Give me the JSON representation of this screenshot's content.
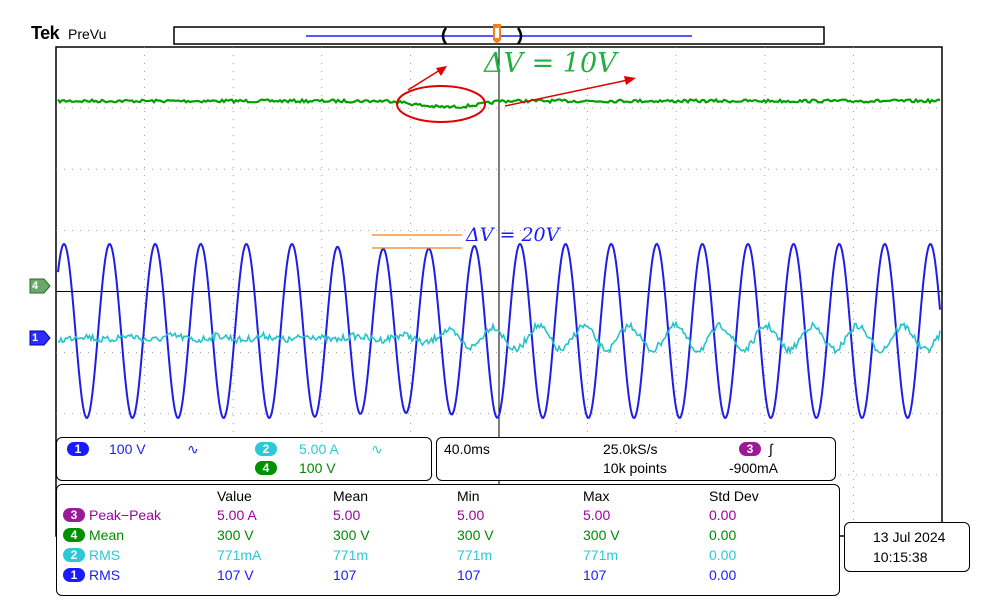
{
  "header": {
    "brand": "Tek",
    "mode": "PreVu"
  },
  "annotations": {
    "delta_top": "ΔV = 10V",
    "delta_mid": "ΔV = 20V"
  },
  "ground_markers": {
    "ch4": "4",
    "ch1": "1"
  },
  "channels_panel": {
    "ch1": {
      "num": "1",
      "scale": "100 V",
      "coupling": "∿"
    },
    "ch2": {
      "num": "2",
      "scale": "5.00 A",
      "coupling": "∿"
    },
    "ch4": {
      "num": "4",
      "scale": "100 V"
    }
  },
  "timebase": {
    "time_div": "40.0ms",
    "sample_rate": "25.0kS/s",
    "record_length": "10k points",
    "trigger_channel": "3",
    "trigger_slope": "∫",
    "trigger_level": "-900mA"
  },
  "measurements": {
    "headers": [
      "Value",
      "Mean",
      "Min",
      "Max",
      "Std Dev"
    ],
    "rows": [
      {
        "ch": "3",
        "name": "Peak−Peak",
        "color": "#a000a0",
        "bg": "#9a1a9a",
        "values": [
          "5.00 A",
          "5.00",
          "5.00",
          "5.00",
          "0.00"
        ]
      },
      {
        "ch": "4",
        "name": "Mean",
        "color": "#008a00",
        "bg": "#009000",
        "values": [
          "300 V",
          "300 V",
          "300 V",
          "300 V",
          "0.00"
        ]
      },
      {
        "ch": "2",
        "name": "RMS",
        "color": "#2dc8d6",
        "bg": "#2dc8d6",
        "values": [
          "771mA",
          "771m",
          "771m",
          "771m",
          "0.00"
        ]
      },
      {
        "ch": "1",
        "name": "RMS",
        "color": "#1a1aff",
        "bg": "#1a1aff",
        "values": [
          "107 V",
          "107",
          "107",
          "107",
          "0.00"
        ]
      }
    ]
  },
  "datetime": {
    "date": "13 Jul  2024",
    "time": "10:15:38"
  },
  "colors": {
    "ch1": "#1a1aff",
    "ch2": "#2dc8d6",
    "ch3": "#a000a0",
    "ch4": "#008a00",
    "annotation": "#e00000",
    "cursor": "#f08020"
  }
}
